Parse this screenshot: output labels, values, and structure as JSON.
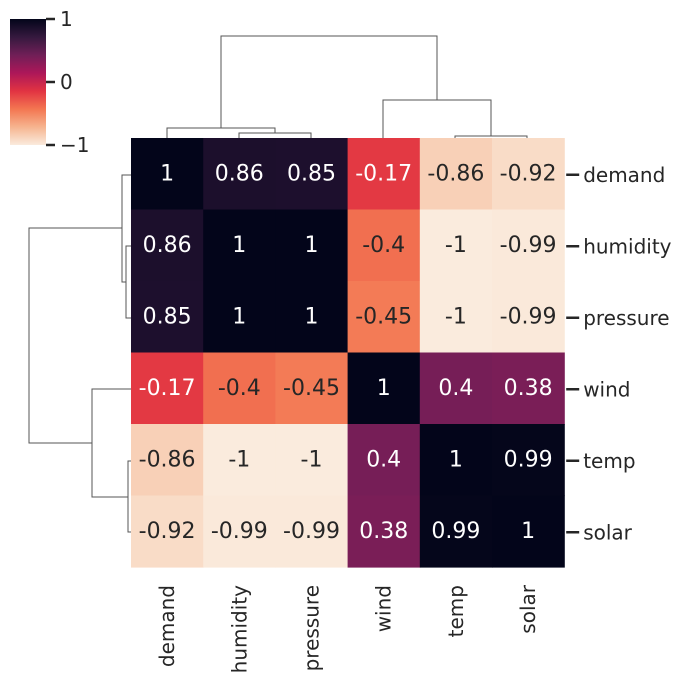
{
  "chart_data": {
    "type": "heatmap",
    "title": "",
    "row_labels": [
      "demand",
      "humidity",
      "pressure",
      "wind",
      "temp",
      "solar"
    ],
    "column_labels": [
      "demand",
      "humidity",
      "pressure",
      "wind",
      "temp",
      "solar"
    ],
    "values": [
      [
        1,
        0.86,
        0.85,
        -0.17,
        -0.86,
        -0.92
      ],
      [
        0.86,
        1,
        1,
        -0.4,
        -1,
        -0.99
      ],
      [
        0.85,
        1,
        1,
        -0.45,
        -1,
        -0.99
      ],
      [
        -0.17,
        -0.4,
        -0.45,
        1,
        0.4,
        0.38
      ],
      [
        -0.86,
        -1,
        -1,
        0.4,
        1,
        0.99
      ],
      [
        -0.92,
        -0.99,
        -0.99,
        0.38,
        0.99,
        1
      ]
    ],
    "annotations": [
      [
        "1",
        "0.86",
        "0.85",
        "-0.17",
        "-0.86",
        "-0.92"
      ],
      [
        "0.86",
        "1",
        "1",
        "-0.4",
        "-1",
        "-0.99"
      ],
      [
        "0.85",
        "1",
        "1",
        "-0.45",
        "-1",
        "-0.99"
      ],
      [
        "-0.17",
        "-0.4",
        "-0.45",
        "1",
        "0.4",
        "0.38"
      ],
      [
        "-0.86",
        "-1",
        "-1",
        "0.4",
        "1",
        "0.99"
      ],
      [
        "-0.92",
        "-0.99",
        "-0.99",
        "0.38",
        "0.99",
        "1"
      ]
    ],
    "colorbar": {
      "range": [
        -1,
        1
      ],
      "ticks": [
        1,
        0,
        -1
      ],
      "tick_labels": [
        "1",
        "0",
        "−1"
      ],
      "colormap": "rocket"
    },
    "colormap_stops": [
      "#faebdd",
      "#f6b48f",
      "#f37651",
      "#e13342",
      "#ad1759",
      "#701f57",
      "#35193e",
      "#03051a"
    ],
    "dendrogram": {
      "row": true,
      "column": true
    },
    "legend": "colorbar top-left"
  }
}
